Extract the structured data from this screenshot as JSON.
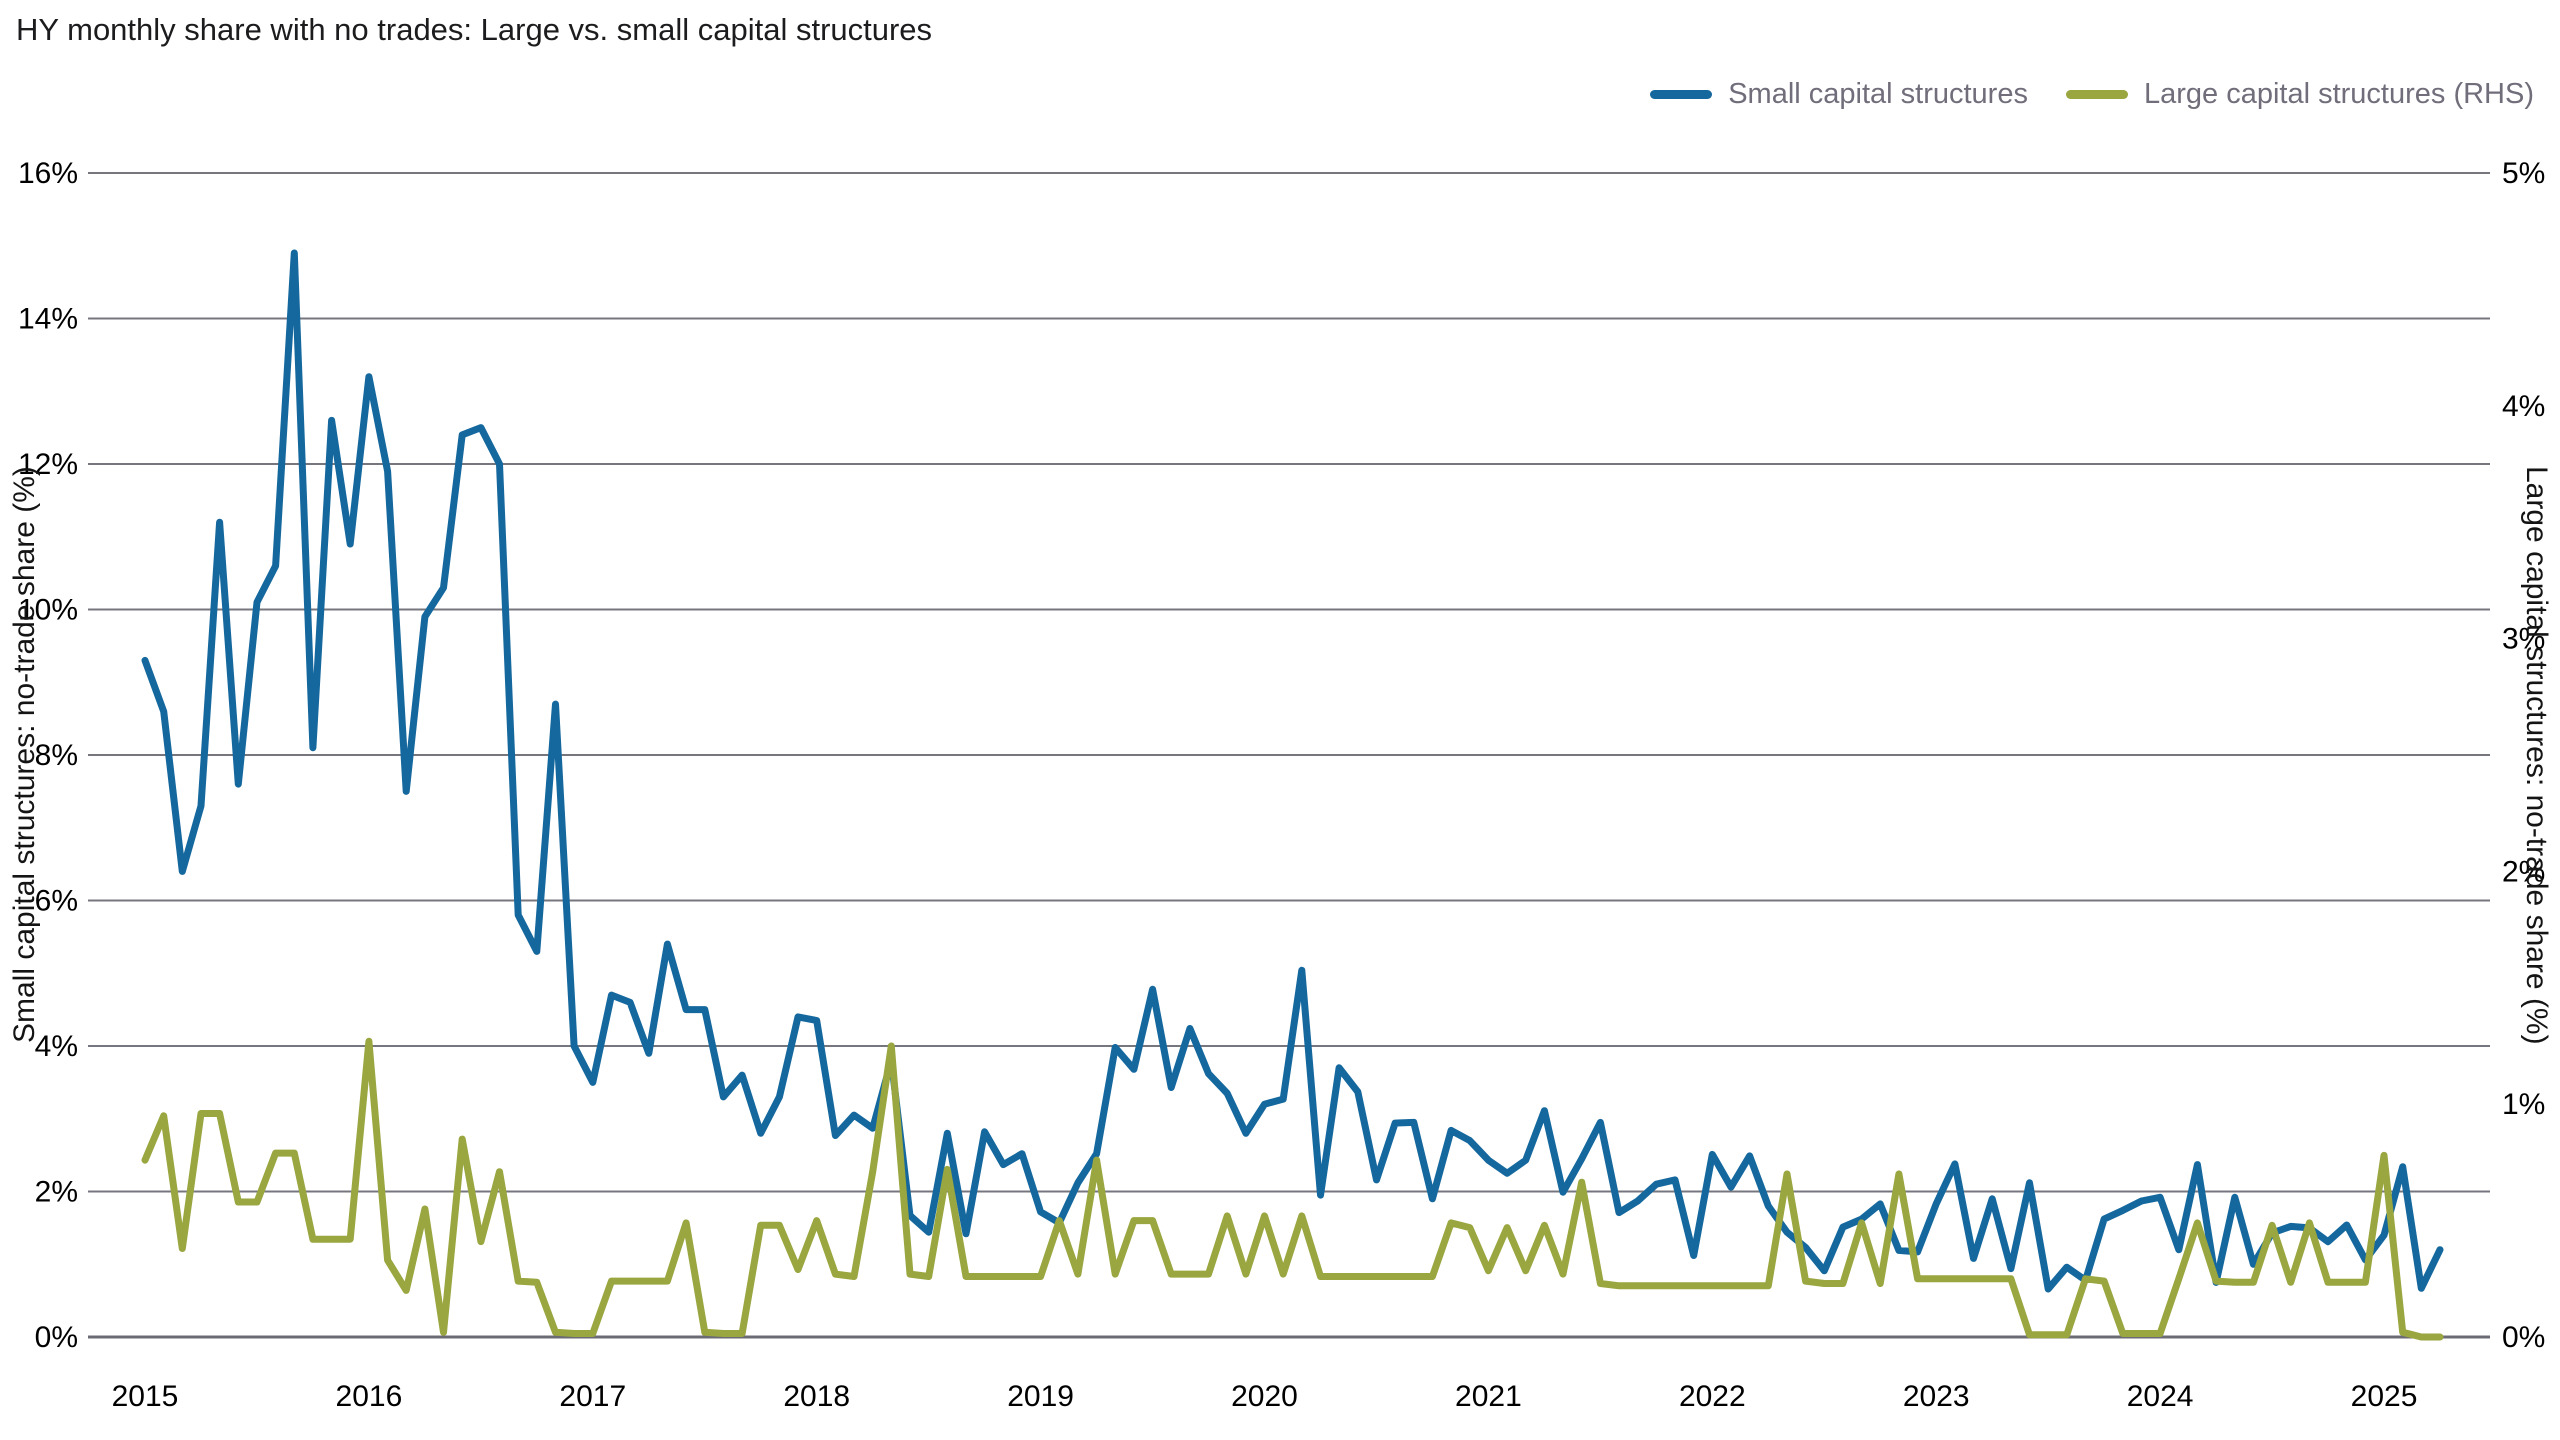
{
  "title": "HY monthly share with no trades: Large vs. small capital structures",
  "legend": {
    "items": [
      {
        "label": "Small capital structures",
        "color": "#15689e"
      },
      {
        "label": "Large capital structures (RHS)",
        "color": "#9aa63f"
      }
    ]
  },
  "colors": {
    "small_line": "#15689e",
    "large_line": "#9aa63f",
    "gridline": "#76767f",
    "axis_line": "#6b6b75",
    "tick_text": "#000000",
    "legend_text": "#716d7a",
    "title_text": "#1c1c1e"
  },
  "chart_data": {
    "type": "line",
    "title": "HY monthly share with no trades: Large vs. small capital structures",
    "grid": true,
    "legend_position": "top-right",
    "x_start": "2015-01",
    "x_end": "2025-04",
    "x_tick_labels": [
      "2015",
      "2016",
      "2017",
      "2018",
      "2019",
      "2020",
      "2021",
      "2022",
      "2023",
      "2024",
      "2025"
    ],
    "left_axis": {
      "label": "Small capital structures: no-trade share (%)",
      "tick_labels": [
        "16%",
        "14%",
        "12%",
        "10%",
        "8%",
        "6%",
        "4%",
        "2%",
        "0%"
      ],
      "range": [
        0,
        16
      ]
    },
    "right_axis": {
      "label": "Large capital structures: no-trade share (%)",
      "tick_labels": [
        "5%",
        "4%",
        "3%",
        "2%",
        "1%",
        "0%"
      ],
      "range": [
        0,
        5
      ]
    },
    "series": [
      {
        "name": "Small capital structures",
        "axis": "left",
        "color": "#15689e",
        "values": [
          9.3,
          8.6,
          6.4,
          7.3,
          11.2,
          7.6,
          10.1,
          10.6,
          14.9,
          8.1,
          12.6,
          10.9,
          13.2,
          11.9,
          7.5,
          9.9,
          10.3,
          12.4,
          12.5,
          12.0,
          5.8,
          5.3,
          8.7,
          4.0,
          3.5,
          4.7,
          4.6,
          3.9,
          5.4,
          4.5,
          4.5,
          3.3,
          3.6,
          2.8,
          3.3,
          4.4,
          4.35,
          2.77,
          3.05,
          2.87,
          3.8,
          1.67,
          1.44,
          2.8,
          1.42,
          2.82,
          2.37,
          2.52,
          1.72,
          1.57,
          2.12,
          2.52,
          3.98,
          3.68,
          4.78,
          3.43,
          4.24,
          3.62,
          3.35,
          2.8,
          3.2,
          3.27,
          5.04,
          1.95,
          3.7,
          3.37,
          2.16,
          2.94,
          2.95,
          1.9,
          2.84,
          2.7,
          2.43,
          2.25,
          2.43,
          3.11,
          1.99,
          2.45,
          2.95,
          1.71,
          1.87,
          2.1,
          2.16,
          1.12,
          2.51,
          2.06,
          2.49,
          1.8,
          1.44,
          1.23,
          0.91,
          1.51,
          1.62,
          1.83,
          1.19,
          1.17,
          1.83,
          2.38,
          1.08,
          1.9,
          0.94,
          2.12,
          0.66,
          0.96,
          0.78,
          1.62,
          1.74,
          1.87,
          1.92,
          1.2,
          2.37,
          0.75,
          1.92,
          1.0,
          1.43,
          1.52,
          1.5,
          1.31,
          1.54,
          1.06,
          1.4,
          2.34,
          0.67,
          1.2
        ]
      },
      {
        "name": "Large capital structures (RHS)",
        "axis": "right",
        "color": "#9aa63f",
        "values": [
          0.76,
          0.95,
          0.38,
          0.96,
          0.96,
          0.58,
          0.58,
          0.79,
          0.79,
          0.42,
          0.42,
          0.42,
          1.27,
          0.33,
          0.2,
          0.55,
          0.02,
          0.85,
          0.41,
          0.71,
          0.24,
          0.235,
          0.02,
          0.015,
          0.015,
          0.24,
          0.24,
          0.24,
          0.24,
          0.49,
          0.02,
          0.015,
          0.015,
          0.48,
          0.48,
          0.29,
          0.5,
          0.27,
          0.26,
          0.71,
          1.25,
          0.27,
          0.26,
          0.72,
          0.26,
          0.26,
          0.26,
          0.26,
          0.26,
          0.5,
          0.27,
          0.76,
          0.27,
          0.5,
          0.5,
          0.27,
          0.27,
          0.27,
          0.52,
          0.27,
          0.52,
          0.27,
          0.52,
          0.26,
          0.26,
          0.26,
          0.26,
          0.26,
          0.26,
          0.26,
          0.49,
          0.47,
          0.285,
          0.47,
          0.285,
          0.48,
          0.27,
          0.665,
          0.23,
          0.22,
          0.22,
          0.22,
          0.22,
          0.22,
          0.22,
          0.22,
          0.22,
          0.22,
          0.7,
          0.24,
          0.23,
          0.23,
          0.49,
          0.23,
          0.7,
          0.25,
          0.25,
          0.25,
          0.25,
          0.25,
          0.25,
          0.01,
          0.01,
          0.01,
          0.25,
          0.24,
          0.015,
          0.015,
          0.015,
          0.25,
          0.49,
          0.24,
          0.235,
          0.235,
          0.48,
          0.235,
          0.49,
          0.235,
          0.235,
          0.235,
          0.78,
          0.02,
          0.0,
          0.0
        ]
      }
    ]
  }
}
